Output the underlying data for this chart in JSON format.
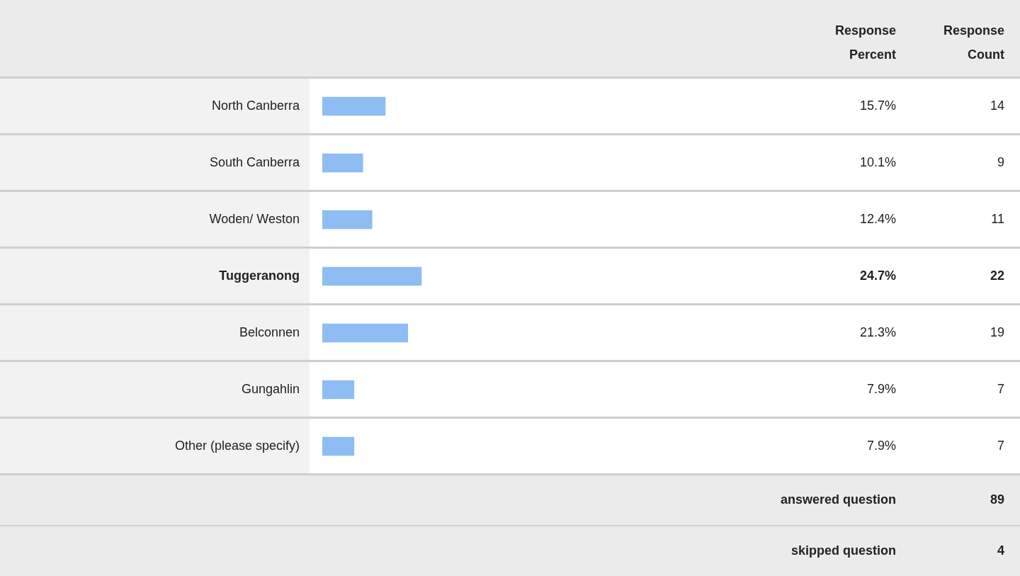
{
  "chart_data": {
    "type": "bar",
    "orientation": "horizontal",
    "categories": [
      "North Canberra",
      "South Canberra",
      "Woden/ Weston",
      "Tuggeranong",
      "Belconnen",
      "Gungahlin",
      "Other (please specify)"
    ],
    "values": [
      15.7,
      10.1,
      12.4,
      24.7,
      21.3,
      7.9,
      7.9
    ],
    "value_labels": [
      "15.7%",
      "10.1%",
      "12.4%",
      "24.7%",
      "21.3%",
      "7.9%",
      "7.9%"
    ],
    "color": "#8dbdf2",
    "tick_labels": "y",
    "grid": false,
    "legend": false,
    "annotations": [
      "Response Percent",
      "Response Count",
      "14",
      "9",
      "11",
      "22",
      "19",
      "7",
      "7",
      "answered question",
      "89",
      "skipped question",
      "4"
    ]
  }
}
